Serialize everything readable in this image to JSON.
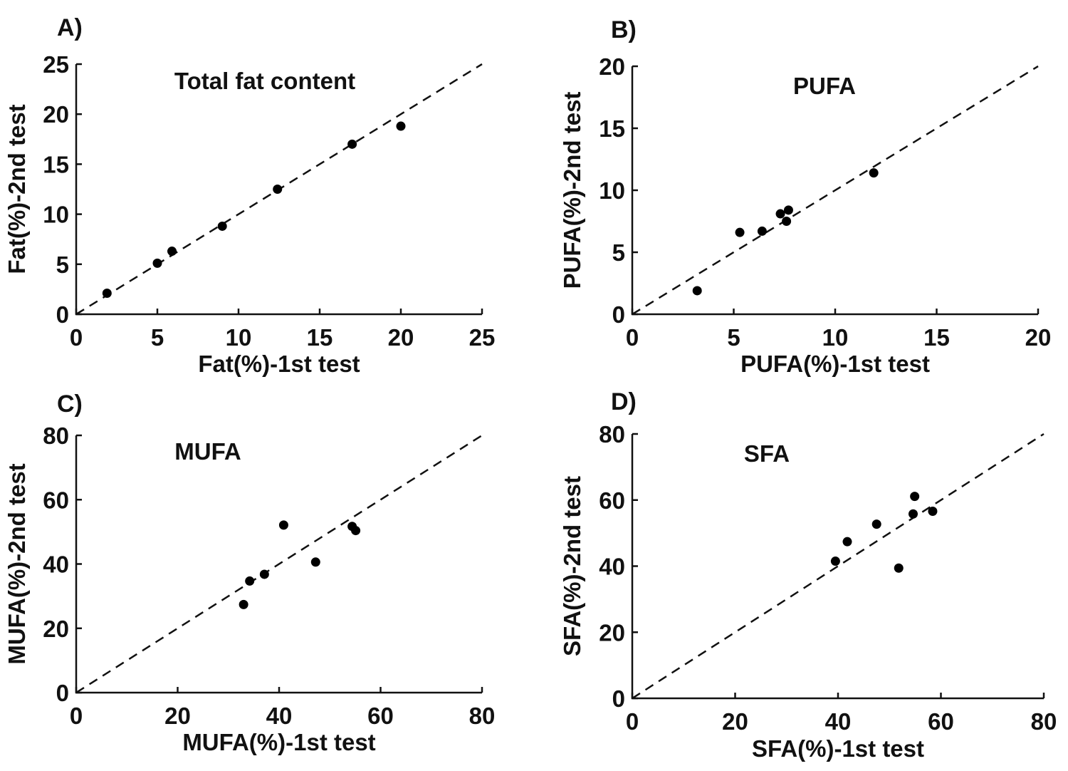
{
  "chart_data": [
    {
      "type": "scatter",
      "panel_label": "A)",
      "title": "Total fat content",
      "xlabel": "Fat(%)-1st test",
      "ylabel": "Fat(%)-2nd test",
      "xlim": [
        0,
        25
      ],
      "ylim": [
        0,
        25
      ],
      "xticks": [
        0,
        5,
        10,
        15,
        20,
        25
      ],
      "yticks": [
        0,
        5,
        10,
        15,
        20,
        25
      ],
      "grid": false,
      "reference_line": "y = x (dashed)",
      "points": [
        {
          "x": 1.9,
          "y": 2.1
        },
        {
          "x": 5.0,
          "y": 5.1
        },
        {
          "x": 5.9,
          "y": 6.3
        },
        {
          "x": 9.0,
          "y": 8.8
        },
        {
          "x": 12.4,
          "y": 12.5
        },
        {
          "x": 17.0,
          "y": 17.0
        },
        {
          "x": 20.0,
          "y": 18.8
        }
      ]
    },
    {
      "type": "scatter",
      "panel_label": "B)",
      "title": "PUFA",
      "xlabel": "PUFA(%)-1st test",
      "ylabel": "PUFA(%)-2nd test",
      "xlim": [
        0,
        20
      ],
      "ylim": [
        0,
        20
      ],
      "xticks": [
        0,
        5,
        10,
        15,
        20
      ],
      "yticks": [
        0,
        5,
        10,
        15,
        20
      ],
      "grid": false,
      "reference_line": "y = x (dashed)",
      "points": [
        {
          "x": 3.2,
          "y": 1.9
        },
        {
          "x": 5.3,
          "y": 6.6
        },
        {
          "x": 6.4,
          "y": 6.7
        },
        {
          "x": 7.3,
          "y": 8.1
        },
        {
          "x": 7.6,
          "y": 7.5
        },
        {
          "x": 7.7,
          "y": 8.4
        },
        {
          "x": 11.9,
          "y": 11.4
        }
      ]
    },
    {
      "type": "scatter",
      "panel_label": "C)",
      "title": "MUFA",
      "xlabel": "MUFA(%)-1st test",
      "ylabel": "MUFA(%)-2nd test",
      "xlim": [
        0,
        80
      ],
      "ylim": [
        0,
        80
      ],
      "xticks": [
        0,
        20,
        40,
        60,
        80
      ],
      "yticks": [
        0,
        20,
        40,
        60,
        80
      ],
      "grid": false,
      "reference_line": "y = x (dashed)",
      "points": [
        {
          "x": 33.0,
          "y": 27.4
        },
        {
          "x": 34.2,
          "y": 34.7
        },
        {
          "x": 37.1,
          "y": 36.8
        },
        {
          "x": 40.9,
          "y": 52.1
        },
        {
          "x": 47.2,
          "y": 40.6
        },
        {
          "x": 54.4,
          "y": 51.7
        },
        {
          "x": 55.1,
          "y": 50.4
        }
      ]
    },
    {
      "type": "scatter",
      "panel_label": "D)",
      "title": "SFA",
      "xlabel": "SFA(%)-1st test",
      "ylabel": "SFA(%)-2nd test",
      "xlim": [
        0,
        80
      ],
      "ylim": [
        0,
        80
      ],
      "xticks": [
        0,
        20,
        40,
        60,
        80
      ],
      "yticks": [
        0,
        20,
        40,
        60,
        80
      ],
      "grid": false,
      "reference_line": "y = x (dashed)",
      "points": [
        {
          "x": 39.5,
          "y": 41.5
        },
        {
          "x": 41.8,
          "y": 47.4
        },
        {
          "x": 47.5,
          "y": 52.7
        },
        {
          "x": 51.8,
          "y": 39.4
        },
        {
          "x": 54.6,
          "y": 55.8
        },
        {
          "x": 54.9,
          "y": 61.1
        },
        {
          "x": 58.4,
          "y": 56.6
        }
      ]
    }
  ]
}
